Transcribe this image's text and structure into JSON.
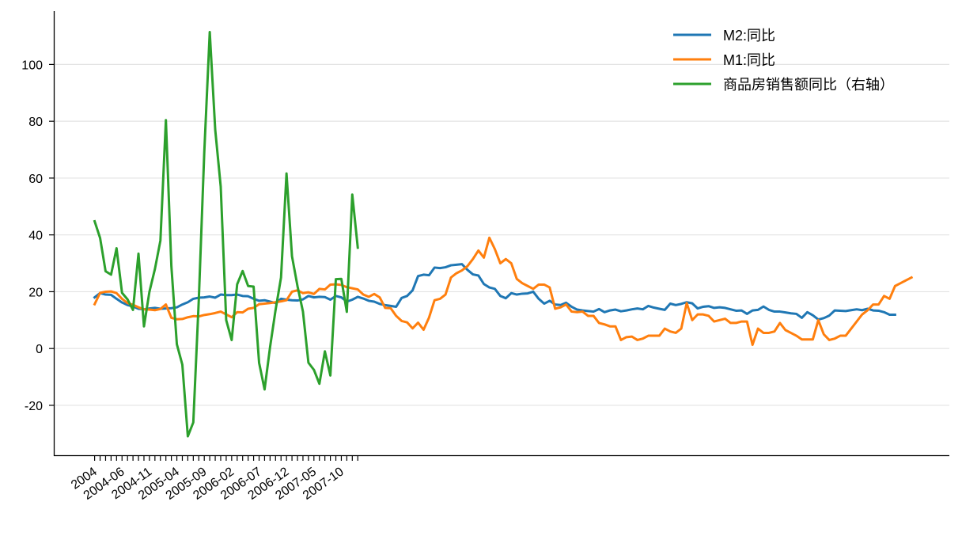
{
  "chart_data": {
    "type": "line",
    "title": "",
    "xlabel": "",
    "ylabel": "",
    "ylim": [
      -38,
      118
    ],
    "yticks": [
      -20,
      0,
      20,
      40,
      60,
      80,
      100
    ],
    "ytick_labels": [
      "-20",
      "0",
      "20",
      "40",
      "60",
      "80",
      "100"
    ],
    "grid": "horizontal",
    "legend_position": "top-right",
    "x_start": "2004-01",
    "x_tick_labels": [
      "2004",
      "2004-06",
      "2004-11",
      "2005-04",
      "2005-09",
      "2006-02",
      "2006-07",
      "2006-12",
      "2007-05",
      "2007-10"
    ],
    "x_tick_months": 49,
    "series": [
      {
        "name": "M2:同比",
        "color": "#1f77b4",
        "x_start_index": 0,
        "values": [
          18.0,
          19.5,
          19.0,
          18.9,
          17.5,
          16.2,
          15.3,
          14.8,
          14.0,
          13.8,
          14.1,
          14.3,
          14.0,
          14.1,
          14.2,
          14.5,
          15.5,
          16.3,
          17.5,
          17.9,
          18.0,
          18.3,
          17.9,
          19.0,
          18.8,
          18.8,
          19.0,
          18.5,
          18.4,
          17.5,
          16.8,
          17.0,
          16.5,
          16.0,
          17.5,
          17.2,
          17.0,
          16.9,
          17.3,
          18.5,
          18.0,
          18.2,
          18.1,
          17.2,
          18.5,
          18.0,
          16.5,
          17.2,
          18.2,
          17.6,
          16.8,
          16.5,
          15.7,
          15.3,
          15.0,
          14.7,
          17.8,
          18.5,
          20.5,
          25.5,
          26.0,
          25.8,
          28.5,
          28.3,
          28.6,
          29.3,
          29.5,
          29.7,
          27.7,
          26.1,
          25.7,
          22.7,
          21.5,
          21.0,
          18.5,
          17.7,
          19.5,
          19.0,
          19.3,
          19.4,
          20.0,
          17.5,
          15.8,
          16.8,
          15.5,
          15.3,
          16.1,
          14.7,
          13.7,
          13.4,
          13.2,
          13.0,
          13.9,
          12.8,
          13.4,
          13.7,
          13.1,
          13.4,
          13.8,
          14.1,
          13.8,
          15.0,
          14.4,
          14.0,
          13.6,
          15.8,
          15.3,
          15.7,
          16.3,
          15.9,
          14.1,
          14.7,
          14.9,
          14.3,
          14.5,
          14.3,
          13.8,
          13.3,
          13.4,
          12.2,
          13.4,
          13.6,
          14.8,
          13.6,
          13.0,
          13.0,
          12.7,
          12.4,
          12.2,
          10.8,
          12.8,
          11.7,
          10.2,
          10.7,
          11.6,
          13.4,
          13.3,
          13.2,
          13.5,
          13.8,
          13.5,
          14.0,
          13.4,
          13.3,
          12.8,
          11.9,
          11.9
        ]
      },
      {
        "name": "M1:同比",
        "color": "#ff7f0e",
        "x_start_index": 0,
        "values": [
          15.6,
          19.6,
          20.0,
          20.1,
          19.5,
          17.5,
          16.0,
          15.4,
          14.5,
          13.8,
          13.7,
          13.5,
          13.9,
          15.5,
          10.8,
          10.3,
          10.4,
          11.0,
          11.4,
          11.3,
          11.8,
          12.1,
          12.5,
          13.0,
          12.0,
          11.0,
          12.8,
          12.7,
          14.0,
          14.3,
          15.6,
          15.8,
          16.0,
          16.3,
          16.6,
          17.0,
          20.0,
          20.5,
          19.5,
          19.8,
          19.2,
          21.0,
          20.8,
          22.5,
          22.6,
          22.4,
          21.6,
          21.2,
          20.8,
          19.0,
          18.2,
          19.2,
          18.0,
          14.3,
          14.2,
          11.5,
          9.7,
          9.2,
          7.1,
          9.1,
          6.6,
          10.9,
          17.0,
          17.5,
          19.0,
          25.0,
          26.5,
          27.5,
          29.0,
          31.5,
          34.5,
          32.0,
          39.0,
          35.0,
          30.0,
          31.5,
          30.0,
          24.5,
          23.0,
          22.0,
          21.0,
          22.5,
          22.5,
          21.5,
          14.0,
          14.5,
          15.5,
          13.0,
          12.8,
          13.0,
          11.5,
          11.5,
          9.0,
          8.5,
          7.8,
          7.8,
          3.0,
          4.0,
          4.2,
          3.0,
          3.5,
          4.5,
          4.5,
          4.5,
          7.0,
          6.0,
          5.5,
          7.0,
          16.0,
          10.0,
          12.0,
          12.0,
          11.5,
          9.5,
          10.0,
          10.5,
          9.0,
          9.0,
          9.5,
          9.5,
          1.3,
          7.0,
          5.5,
          5.5,
          6.0,
          9.0,
          6.5,
          5.5,
          4.5,
          3.2,
          3.2,
          3.2,
          10.0,
          5.0,
          3.0,
          3.5,
          4.5,
          4.5,
          7.0,
          9.5,
          12.0,
          13.5,
          15.5,
          15.5,
          18.5,
          17.5,
          22.0,
          23.0,
          24.0,
          25.0
        ]
      },
      {
        "name": "商品房销售额同比（右轴）",
        "color": "#2ca02c",
        "x_start_index": 0,
        "values": [
          44.8,
          38.9,
          27.2,
          26.0,
          35.3,
          19.6,
          17.3,
          13.6,
          33.4,
          7.8,
          20.0,
          28.0,
          38.0,
          80.4,
          29.0,
          1.5,
          -5.7,
          -30.9,
          -26.0,
          17.0,
          69.0,
          111.4,
          77.0,
          57.0,
          10.0,
          3.0,
          22.6,
          27.3,
          22.0,
          21.8,
          -5.0,
          -14.4,
          0.5,
          13.5,
          25.0,
          61.6,
          32.5,
          22.0,
          13.0,
          -5.0,
          -7.5,
          -12.4,
          -1.0,
          -9.5,
          24.4,
          24.5,
          12.9,
          54.2,
          35.5
        ]
      }
    ]
  }
}
